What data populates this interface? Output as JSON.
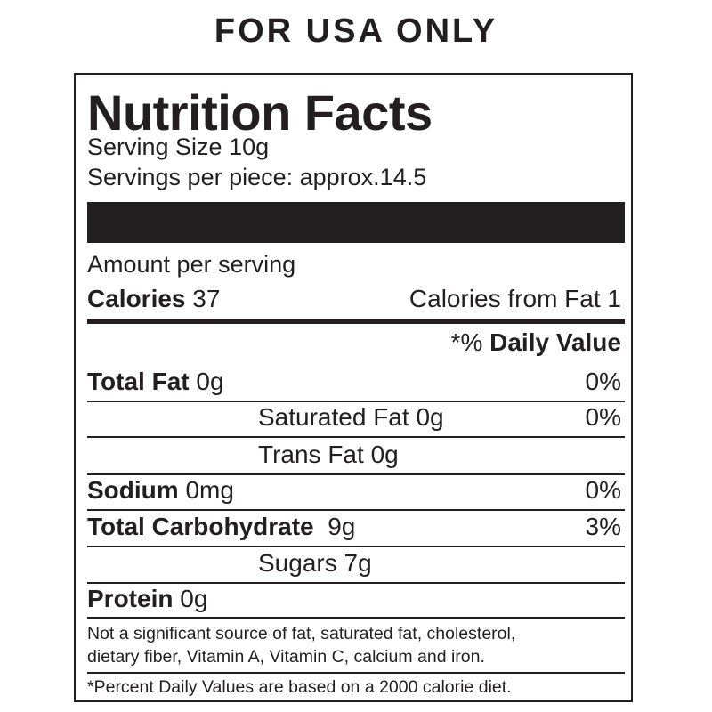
{
  "header": "FOR USA ONLY",
  "label": {
    "title": "Nutrition Facts",
    "serving_size": "Serving Size 10g",
    "servings_per": "Servings per piece: approx.14.5",
    "amount_per_serving": "Amount per serving",
    "calories_label": "Calories",
    "calories_value": "37",
    "calories_from_fat": "Calories from Fat 1",
    "dv_prefix": "*%",
    "dv_label": "Daily Value",
    "rows": [
      {
        "name": "Total Fat",
        "amount": "0g",
        "dv": "0%",
        "bold": true
      },
      {
        "name": "Saturated Fat",
        "amount": "0g",
        "dv": "0%",
        "bold": false
      },
      {
        "name": "Trans Fat",
        "amount": "0g",
        "dv": "",
        "bold": false
      },
      {
        "name": "Sodium",
        "amount": "0mg",
        "dv": "0%",
        "bold": true
      },
      {
        "name": "Total Carbohydrate",
        "amount": "9g",
        "dv": "3%",
        "bold": true
      },
      {
        "name": "Sugars",
        "amount": "7g",
        "dv": "",
        "bold": false
      },
      {
        "name": "Protein",
        "amount": "0g",
        "dv": "",
        "bold": true
      }
    ],
    "note_line1": "Not a significant source of fat, saturated fat, cholesterol,",
    "note_line2": "dietary fiber, Vitamin A, Vitamin C, calcium and iron.",
    "footnote": "*Percent Daily Values are based on a 2000 calorie diet."
  }
}
